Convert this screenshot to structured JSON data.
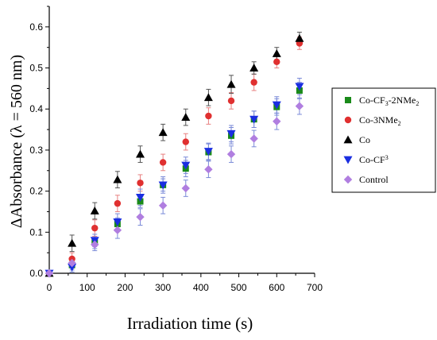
{
  "chart_data": {
    "type": "scatter",
    "title": "",
    "xlabel": "Irradiation time (s)",
    "ylabel": "ΔAbsorbance (λ = 560 nm)",
    "xlim": [
      0,
      700
    ],
    "ylim": [
      0,
      0.65
    ],
    "x_ticks": [
      "0",
      "100",
      "200",
      "300",
      "400",
      "500",
      "600",
      "700"
    ],
    "y_ticks": [
      "0.0",
      "0.1",
      "0.2",
      "0.3",
      "0.4",
      "0.5",
      "0.6"
    ],
    "error_bars": true,
    "legend_position": "right",
    "series": [
      {
        "name": "Co-CF3-2NMe2",
        "marker": "square",
        "color": "#1a8a1a",
        "x": [
          0,
          60,
          120,
          180,
          240,
          300,
          360,
          420,
          480,
          540,
          600,
          660
        ],
        "y": [
          0.0,
          0.02,
          0.075,
          0.12,
          0.175,
          0.215,
          0.255,
          0.295,
          0.335,
          0.375,
          0.405,
          0.445
        ],
        "err": [
          0.0,
          0.012,
          0.015,
          0.015,
          0.015,
          0.015,
          0.02,
          0.02,
          0.02,
          0.02,
          0.02,
          0.02
        ]
      },
      {
        "name": "Co-3NMe2",
        "marker": "circle",
        "color": "#e03030",
        "x": [
          0,
          60,
          120,
          180,
          240,
          300,
          360,
          420,
          480,
          540,
          600,
          660
        ],
        "y": [
          0.0,
          0.035,
          0.11,
          0.17,
          0.22,
          0.27,
          0.32,
          0.383,
          0.42,
          0.465,
          0.515,
          0.56
        ],
        "err": [
          0.0,
          0.015,
          0.02,
          0.02,
          0.02,
          0.02,
          0.02,
          0.02,
          0.02,
          0.02,
          0.015,
          0.015
        ]
      },
      {
        "name": "Co",
        "marker": "triangle-up",
        "color": "#000000",
        "x": [
          0,
          60,
          120,
          180,
          240,
          300,
          360,
          420,
          480,
          540,
          600,
          660
        ],
        "y": [
          0.0,
          0.073,
          0.152,
          0.228,
          0.29,
          0.343,
          0.38,
          0.428,
          0.46,
          0.5,
          0.535,
          0.572
        ],
        "err": [
          0.0,
          0.02,
          0.02,
          0.02,
          0.02,
          0.02,
          0.02,
          0.02,
          0.022,
          0.015,
          0.015,
          0.015
        ]
      },
      {
        "name": "Co-CF3",
        "marker": "triangle-down",
        "color": "#1a2ee0",
        "x": [
          0,
          60,
          120,
          180,
          240,
          300,
          360,
          420,
          480,
          540,
          600,
          660
        ],
        "y": [
          0.0,
          0.015,
          0.08,
          0.125,
          0.185,
          0.215,
          0.263,
          0.297,
          0.34,
          0.375,
          0.41,
          0.455
        ],
        "err": [
          0.0,
          0.012,
          0.015,
          0.02,
          0.02,
          0.02,
          0.02,
          0.02,
          0.02,
          0.02,
          0.02,
          0.02
        ]
      },
      {
        "name": "Control",
        "marker": "diamond",
        "color": "#b07ee0",
        "x": [
          0,
          60,
          120,
          180,
          240,
          300,
          360,
          420,
          480,
          540,
          600,
          660
        ],
        "y": [
          0.0,
          0.025,
          0.07,
          0.105,
          0.137,
          0.165,
          0.207,
          0.253,
          0.29,
          0.328,
          0.37,
          0.407
        ],
        "err": [
          0.0,
          0.012,
          0.015,
          0.02,
          0.02,
          0.02,
          0.02,
          0.02,
          0.02,
          0.02,
          0.02,
          0.02
        ]
      }
    ]
  },
  "legend": {
    "items": [
      {
        "base": "Co-CF",
        "sub1": "3",
        "mid": "-2NMe",
        "sub2": "2"
      },
      {
        "base": "Co-3NMe",
        "sub1": "2",
        "mid": "",
        "sub2": ""
      },
      {
        "base": "Co",
        "sub1": "",
        "mid": "",
        "sub2": ""
      },
      {
        "base": "Co-CF",
        "sup1": "3"
      },
      {
        "base": "Control",
        "sub1": "",
        "mid": "",
        "sub2": ""
      }
    ]
  }
}
